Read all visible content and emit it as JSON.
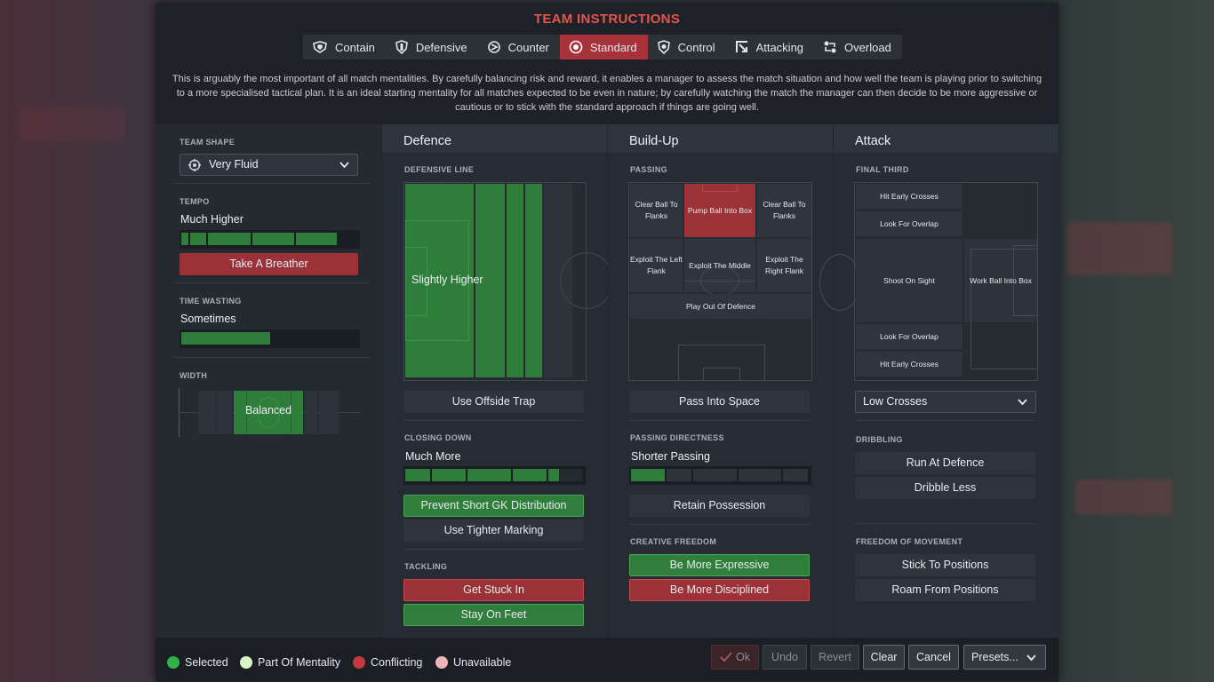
{
  "dialog": {
    "title": "TEAM INSTRUCTIONS",
    "description": "This is arguably the most important of all match mentalities. By carefully balancing risk and reward, it enables a manager to assess the match situation and how well the team is playing prior to switching to a more specialised tactical plan. It is an ideal starting mentality for all matches expected to be even in nature; by carefully watching the match the manager can then decide to be more aggressive or cautious or to stick with the standard approach if things are going well."
  },
  "tabs": [
    {
      "label": "Contain",
      "icon": "contain-icon"
    },
    {
      "label": "Defensive",
      "icon": "shield-icon"
    },
    {
      "label": "Counter",
      "icon": "counter-icon"
    },
    {
      "label": "Standard",
      "icon": "standard-icon",
      "active": true
    },
    {
      "label": "Control",
      "icon": "control-icon"
    },
    {
      "label": "Attacking",
      "icon": "attacking-icon"
    },
    {
      "label": "Overload",
      "icon": "overload-icon"
    }
  ],
  "left": {
    "team_shape_label": "TEAM SHAPE",
    "team_shape_value": "Very Fluid",
    "tempo_label": "TEMPO",
    "tempo_value": "Much Higher",
    "tempo_level": 0.88,
    "tempo_button": "Take A Breather",
    "time_wasting_label": "TIME WASTING",
    "time_wasting_value": "Sometimes",
    "time_wasting_level": 0.5,
    "width_label": "WIDTH",
    "width_value": "Balanced"
  },
  "defence": {
    "heading": "Defence",
    "defensive_line_label": "DEFENSIVE LINE",
    "defensive_line_value": "Slightly Higher",
    "offside_button": "Use Offside Trap",
    "closing_down_label": "CLOSING DOWN",
    "closing_down_value": "Much More",
    "closing_down_level": 0.86,
    "prevent_gk_button": "Prevent Short GK Distribution",
    "tighter_marking_button": "Use Tighter Marking",
    "tackling_label": "TACKLING",
    "get_stuck_in_button": "Get Stuck In",
    "stay_on_feet_button": "Stay On Feet"
  },
  "buildup": {
    "heading": "Build-Up",
    "passing_label": "PASSING",
    "cells": {
      "clear_left": "Clear Ball To Flanks",
      "pump": "Pump Ball Into Box",
      "clear_right": "Clear Ball To Flanks",
      "exploit_left": "Exploit The Left Flank",
      "exploit_middle": "Exploit The Middle",
      "exploit_right": "Exploit The Right Flank",
      "play_out": "Play Out Of Defence"
    },
    "pass_into_space_button": "Pass Into Space",
    "directness_label": "PASSING DIRECTNESS",
    "directness_value": "Shorter Passing",
    "directness_level": 0.2,
    "retain_button": "Retain Possession",
    "creative_label": "CREATIVE FREEDOM",
    "expressive_button": "Be More Expressive",
    "disciplined_button": "Be More Disciplined"
  },
  "attack": {
    "heading": "Attack",
    "final_third_label": "FINAL THIRD",
    "cells": {
      "hit_early_top": "Hit Early Crosses",
      "overlap_top": "Look For Overlap",
      "shoot": "Shoot On Sight",
      "work_ball": "Work Ball Into Box",
      "overlap_bottom": "Look For Overlap",
      "hit_early_bottom": "Hit Early Crosses"
    },
    "crossing_value": "Low Crosses",
    "dribbling_label": "DRIBBLING",
    "run_at_defence_button": "Run At Defence",
    "dribble_less_button": "Dribble Less",
    "freedom_label": "FREEDOM OF MOVEMENT",
    "stick_button": "Stick To Positions",
    "roam_button": "Roam From Positions"
  },
  "legend": {
    "selected": "Selected",
    "part_of_mentality": "Part Of Mentality",
    "conflicting": "Conflicting",
    "unavailable": "Unavailable"
  },
  "footer": {
    "ok": "Ok",
    "undo": "Undo",
    "revert": "Revert",
    "clear": "Clear",
    "cancel": "Cancel",
    "presets": "Presets..."
  },
  "colors": {
    "accent": "#a8323a",
    "selected": "#2e7d3a",
    "conflicting": "#9a3238"
  }
}
